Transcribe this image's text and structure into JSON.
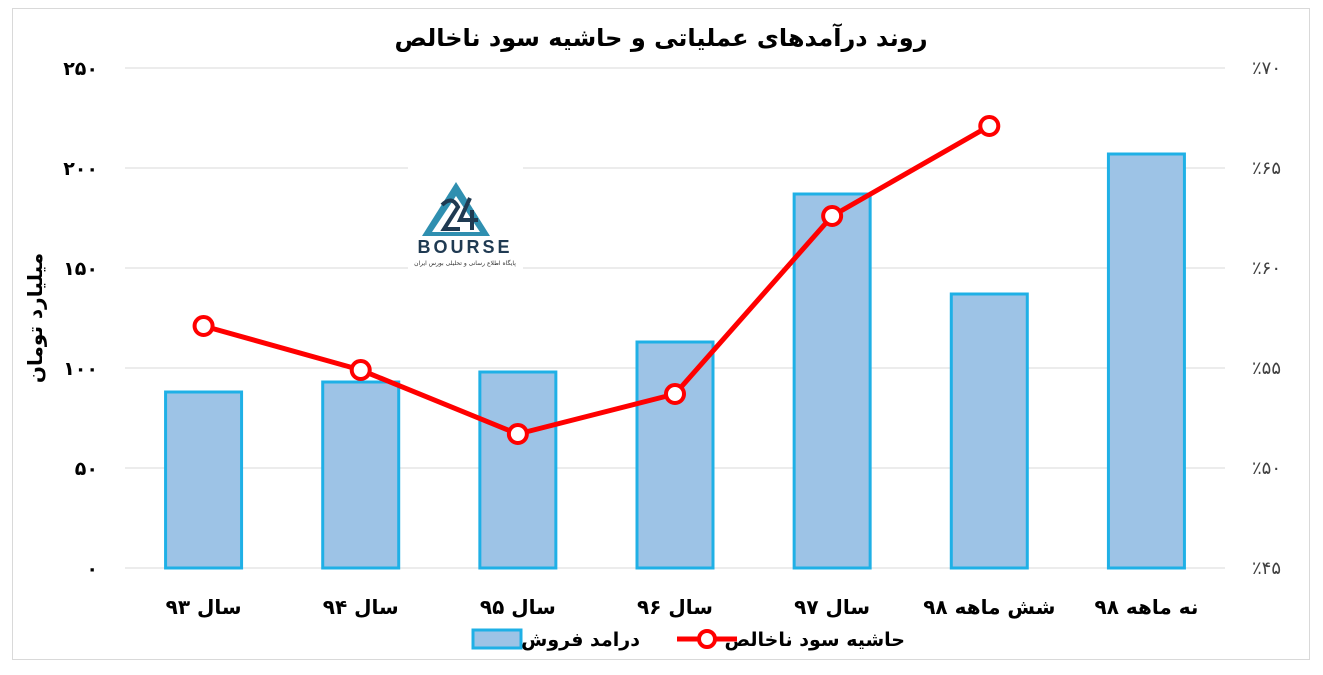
{
  "chart_data": {
    "type": "bar",
    "title": "روند درآمدهای عملیاتی و حاشیه سود ناخالص",
    "ylabel": "میلیارد تومان",
    "categories": [
      "سال ۹۳",
      "سال ۹۴",
      "سال ۹۵",
      "سال ۹۶",
      "سال ۹۷",
      "شش ماهه ۹۸",
      "نه ماهه ۹۸"
    ],
    "y_ticks": [
      "۰",
      "۵۰",
      "۱۰۰",
      "۱۵۰",
      "۲۰۰",
      "۲۵۰"
    ],
    "ylim": [
      0,
      250
    ],
    "y2_ticks": [
      "٪۴۵",
      "٪۵۰",
      "٪۵۵",
      "٪۶۰",
      "٪۶۵",
      "٪۷۰"
    ],
    "y2lim": [
      45,
      70
    ],
    "series": [
      {
        "name": "درامد فروش",
        "type": "bar",
        "axis": "left",
        "color": "#9dc3e6",
        "edge_color": "#1fb0e6",
        "values": [
          88,
          93,
          98,
          113,
          187,
          137,
          207
        ]
      },
      {
        "name": "حاشیه سود ناخالص",
        "type": "line",
        "axis": "right",
        "color": "#ff0000",
        "values": [
          57.1,
          54.9,
          51.7,
          53.7,
          62.6,
          67.1,
          null
        ]
      }
    ],
    "legend_position": "bottom",
    "grid": true
  },
  "logo": {
    "text": "BOURSE",
    "number": "24",
    "tagline": "پایگاه اطلاع رسانی و تحلیلی بورس ایران"
  }
}
